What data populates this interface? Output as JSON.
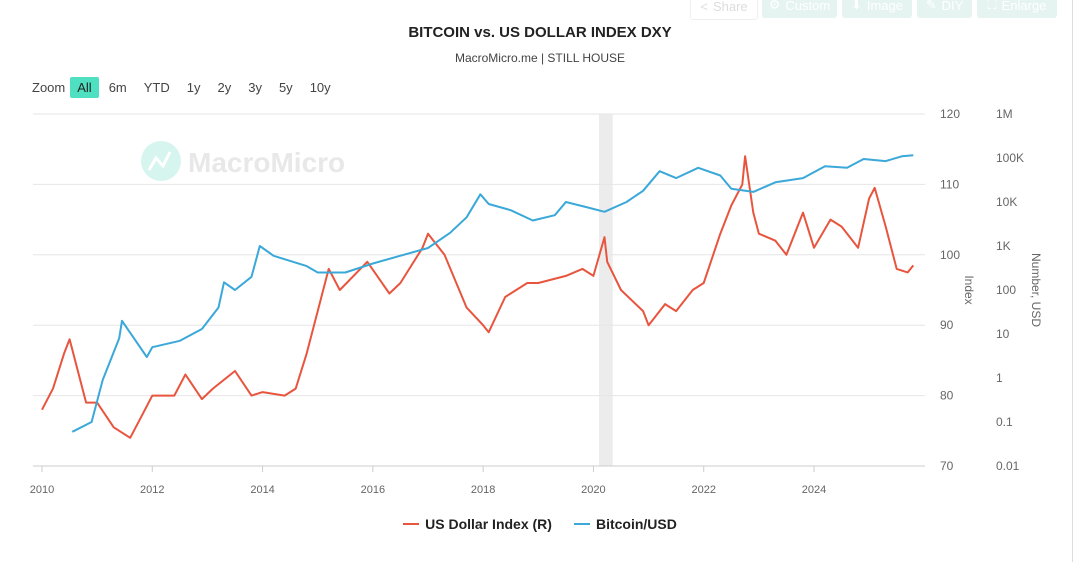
{
  "toolbar": {
    "share": "Share",
    "custom": "Custom",
    "image": "Image",
    "diy": "DIY",
    "enlarge": "Enlarge"
  },
  "zoom": {
    "label": "Zoom",
    "buttons": [
      "All",
      "6m",
      "YTD",
      "1y",
      "2y",
      "3y",
      "5y",
      "10y"
    ],
    "active": "All"
  },
  "watermark": "MacroMicro",
  "chart_data": {
    "type": "line",
    "title": "BITCOIN vs. US DOLLAR INDEX DXY",
    "subtitle": "MacroMicro.me | STILL HOUSE",
    "x_ticks": [
      "2010",
      "2012",
      "2014",
      "2016",
      "2018",
      "2020",
      "2022",
      "2024"
    ],
    "xlim": [
      2009.85,
      2026.0
    ],
    "left_axis": {
      "label": "Index",
      "ylim": [
        70,
        120
      ],
      "ticks": [
        "70",
        "80",
        "90",
        "100",
        "110",
        "120"
      ]
    },
    "right_axis": {
      "label": "Number, USD",
      "scale": "log",
      "ylim": [
        0.01,
        1000000
      ],
      "ticks": [
        "0.01",
        "0.1",
        "1",
        "10",
        "100",
        "1K",
        "10K",
        "100K",
        "1M"
      ]
    },
    "shaded_periods": [
      [
        2020.1,
        2020.35
      ]
    ],
    "grid": true,
    "legend_position": "bottom",
    "series": [
      {
        "name": "US Dollar Index (R)",
        "axis": "left",
        "color": "#e8553e",
        "x": [
          2010.0,
          2010.2,
          2010.4,
          2010.5,
          2010.8,
          2011.0,
          2011.3,
          2011.6,
          2011.8,
          2012.0,
          2012.4,
          2012.6,
          2012.9,
          2013.1,
          2013.5,
          2013.8,
          2014.0,
          2014.4,
          2014.6,
          2014.8,
          2015.0,
          2015.2,
          2015.4,
          2015.9,
          2016.3,
          2016.5,
          2016.9,
          2017.0,
          2017.3,
          2017.7,
          2018.0,
          2018.1,
          2018.4,
          2018.8,
          2019.0,
          2019.5,
          2019.8,
          2020.0,
          2020.2,
          2020.25,
          2020.5,
          2020.9,
          2021.0,
          2021.3,
          2021.5,
          2021.8,
          2022.0,
          2022.3,
          2022.5,
          2022.7,
          2022.75,
          2022.9,
          2023.0,
          2023.3,
          2023.5,
          2023.8,
          2024.0,
          2024.3,
          2024.5,
          2024.8,
          2025.0,
          2025.1,
          2025.3,
          2025.5,
          2025.7,
          2025.8
        ],
        "y": [
          78,
          81,
          86,
          88,
          79,
          79,
          75.5,
          74,
          77,
          80,
          80,
          83,
          79.5,
          81,
          83.5,
          80,
          80.5,
          80,
          81,
          86,
          92,
          98,
          95,
          99,
          94.5,
          96,
          101,
          103,
          100,
          92.5,
          90,
          89,
          94,
          96,
          96,
          97,
          98,
          97,
          102.5,
          99,
          95,
          92,
          90,
          93,
          92,
          95,
          96,
          103,
          107,
          110,
          114,
          106,
          103,
          102,
          100,
          106,
          101,
          105,
          104,
          101,
          108,
          109.5,
          104,
          98,
          97.5,
          98.5
        ]
      },
      {
        "name": "Bitcoin/USD",
        "axis": "right",
        "color": "#3aa8d8",
        "x": [
          2010.55,
          2010.9,
          2011.1,
          2011.4,
          2011.45,
          2011.9,
          2012.0,
          2012.5,
          2012.9,
          2013.2,
          2013.3,
          2013.5,
          2013.8,
          2013.95,
          2014.2,
          2014.8,
          2015.0,
          2015.5,
          2016.0,
          2016.6,
          2017.0,
          2017.4,
          2017.7,
          2017.95,
          2018.1,
          2018.5,
          2018.9,
          2019.3,
          2019.5,
          2019.9,
          2020.2,
          2020.6,
          2020.9,
          2021.2,
          2021.5,
          2021.9,
          2022.3,
          2022.5,
          2022.9,
          2023.3,
          2023.8,
          2024.2,
          2024.6,
          2024.9,
          2025.3,
          2025.6,
          2025.8
        ],
        "y": [
          0.06,
          0.1,
          0.9,
          8,
          20,
          3,
          5,
          7,
          13,
          40,
          150,
          100,
          200,
          1000,
          600,
          350,
          250,
          250,
          400,
          650,
          900,
          2000,
          4500,
          15000,
          9000,
          6500,
          3800,
          5000,
          10000,
          7500,
          6000,
          10000,
          18000,
          50000,
          35000,
          60000,
          40000,
          20000,
          17000,
          28000,
          35000,
          65000,
          60000,
          95000,
          85000,
          110000,
          115000
        ]
      }
    ]
  }
}
